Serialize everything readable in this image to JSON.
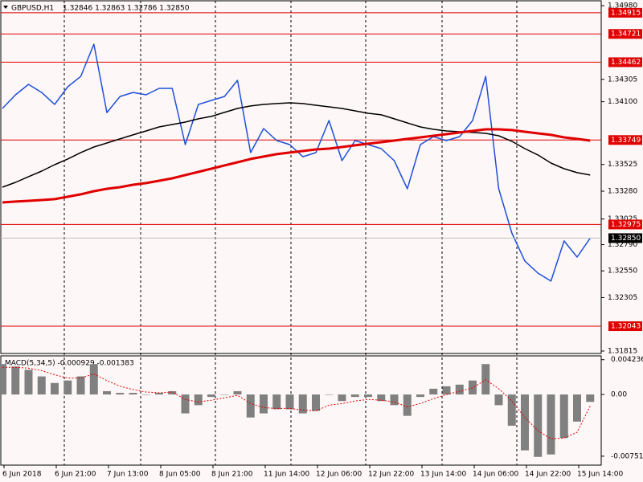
{
  "chart_data": [
    {
      "type": "line",
      "title": "GBPUSD,H1",
      "subtitle": "1.32846 1.32863 1.32786 1.32850",
      "categories": [
        "6 Jun 2018",
        null,
        null,
        null,
        "6 Jun 21:00",
        null,
        null,
        null,
        "7 Jun 13:00",
        null,
        null,
        null,
        "8 Jun 05:00",
        null,
        null,
        null,
        "8 Jun 21:00",
        null,
        null,
        null,
        "11 Jun 14:00",
        null,
        null,
        null,
        "12 Jun 06:00",
        null,
        null,
        null,
        "12 Jun 22:00",
        null,
        null,
        null,
        "13 Jun 14:00",
        null,
        null,
        null,
        "14 Jun 06:00",
        null,
        null,
        null,
        "14 Jun 22:00",
        null,
        null,
        null,
        "15 Jun 14:00",
        null
      ],
      "series": [
        {
          "color": "#1f4fd8",
          "width": 1.5,
          "values": [
            1.34038,
            1.34163,
            1.34259,
            1.34185,
            1.34075,
            1.34237,
            1.34332,
            1.34627,
            1.34001,
            1.34148,
            1.34185,
            1.34163,
            1.34222,
            1.34222,
            1.33707,
            1.34075,
            1.34112,
            1.34148,
            1.34296,
            1.33633,
            1.33854,
            1.33744,
            1.33707,
            1.33596,
            1.33633,
            1.33928,
            1.3356,
            1.33744,
            1.33707,
            1.3367,
            1.3356,
            1.33302,
            1.33707,
            1.3378,
            1.33744,
            1.3378,
            1.33928,
            1.34332,
            1.33302,
            1.32897,
            1.3264,
            1.32529,
            1.32456,
            1.32824,
            1.32676,
            1.3285
          ]
        },
        {
          "color": "#000000",
          "width": 1.5,
          "values": [
            1.33317,
            1.33361,
            1.33413,
            1.33464,
            1.33523,
            1.33575,
            1.33634,
            1.33685,
            1.33722,
            1.33759,
            1.33796,
            1.33832,
            1.33869,
            1.33891,
            1.33913,
            1.33943,
            1.33965,
            1.34002,
            1.34038,
            1.34061,
            1.34075,
            1.34083,
            1.3409,
            1.34083,
            1.34068,
            1.34053,
            1.34038,
            1.34016,
            1.33994,
            1.3398,
            1.33943,
            1.33906,
            1.33869,
            1.33847,
            1.33832,
            1.33825,
            1.33818,
            1.3381,
            1.33788,
            1.33737,
            1.3367,
            1.33612,
            1.33538,
            1.33486,
            1.3345,
            1.33428
          ]
        },
        {
          "color": "#e00000",
          "width": 3,
          "values": [
            1.33177,
            1.33185,
            1.33192,
            1.33199,
            1.33207,
            1.33229,
            1.33251,
            1.3328,
            1.33302,
            1.33317,
            1.33339,
            1.33354,
            1.33376,
            1.33398,
            1.33428,
            1.33457,
            1.33486,
            1.33516,
            1.33545,
            1.33575,
            1.33597,
            1.33619,
            1.33634,
            1.33648,
            1.33663,
            1.3367,
            1.33685,
            1.337,
            1.33715,
            1.33729,
            1.33744,
            1.33759,
            1.33773,
            1.33788,
            1.33803,
            1.33818,
            1.33832,
            1.33847,
            1.33847,
            1.3384,
            1.33825,
            1.3381,
            1.33796,
            1.33773,
            1.33759,
            1.33744
          ]
        }
      ],
      "levels": [
        1.34915,
        1.34721,
        1.34462,
        1.33749,
        1.32975,
        1.32043
      ],
      "level_color": "#e00000",
      "current": {
        "value": 1.3285,
        "label": "1.32850"
      },
      "ylim": [
        1.31793,
        1.35032
      ],
      "yticks": [
        {
          "value": 1.3498,
          "label": "1.34980"
        },
        1.34305,
        {
          "value": 1.341,
          "label": "1.34100"
        },
        1.33525,
        {
          "value": 1.3328,
          "label": "1.33280"
        },
        1.33025,
        {
          "value": 1.3279,
          "label": "1.32790"
        },
        {
          "value": 1.3255,
          "label": "1.32550"
        },
        1.32305,
        1.31815
      ]
    },
    {
      "type": "bar",
      "title": "MACD(5,34,5) -0.000929 -0.001383",
      "series": [
        {
          "type": "bar",
          "color": "#808080",
          "values": [
            0.0037,
            0.0034,
            0.003,
            0.0022,
            0.0014,
            0.0017,
            0.0022,
            0.0037,
            0.0004,
            0.0002,
            0.0002,
            0,
            0.0002,
            0.0004,
            -0.0023,
            -0.0013,
            -0.0003,
            0,
            0.0004,
            -0.0028,
            -0.0023,
            -0.0018,
            -0.0018,
            -0.0023,
            -0.002,
            0,
            -0.0008,
            -0.0003,
            -0.0003,
            -0.0008,
            -0.0013,
            -0.0026,
            -0.0003,
            0.0007,
            0.001,
            0.0012,
            0.0017,
            0.0037,
            -0.0013,
            -0.0038,
            -0.0068,
            -0.0076,
            -0.0073,
            -0.0053,
            -0.0033,
            -0.0009
          ]
        },
        {
          "type": "line",
          "color": "#e00000",
          "values": [
            0.0033,
            0.0033,
            0.0032,
            0.0029,
            0.0024,
            0.002,
            0.002,
            0.0025,
            0.0017,
            0.001,
            0.0006,
            0.0003,
            0.0002,
            0.0003,
            -0.0006,
            -0.0009,
            -0.0007,
            -0.0004,
            -0.0001,
            -0.0011,
            -0.0016,
            -0.0017,
            -0.0017,
            -0.0019,
            -0.002,
            -0.0013,
            -0.0011,
            -0.0008,
            -0.0006,
            -0.0007,
            -0.0009,
            -0.0015,
            -0.0011,
            -0.0005,
            0,
            0.0004,
            0.0008,
            0.0018,
            0.0007,
            -0.0008,
            -0.0028,
            -0.0044,
            -0.0054,
            -0.0053,
            -0.0046,
            -0.0014
          ]
        }
      ],
      "ylim": [
        -0.0086,
        0.0047
      ],
      "yticks": [
        0.004236,
        {
          "value": 0,
          "label": "0.00"
        },
        -0.007512
      ]
    }
  ]
}
